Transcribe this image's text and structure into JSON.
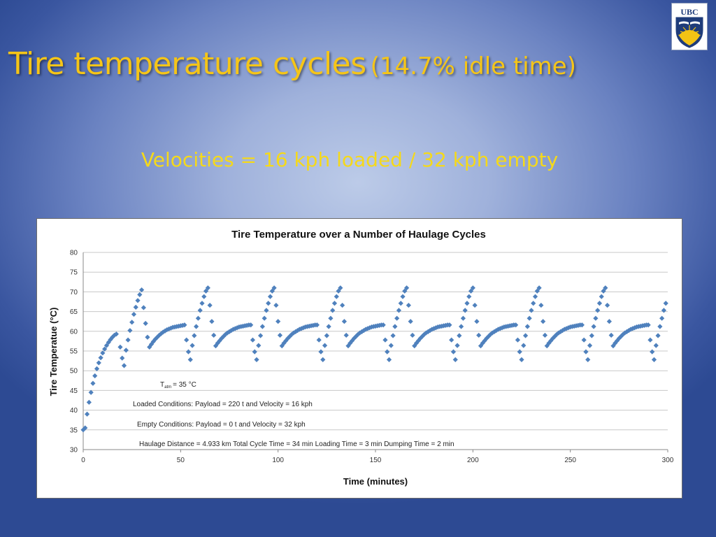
{
  "slide": {
    "title_main": "Tire temperature cycles",
    "title_sub": "(14.7% idle time)",
    "subtitle": "Velocities = 16 kph loaded / 32 kph empty",
    "logo_text": "UBC",
    "colors": {
      "title": "#f5c518",
      "subtitle": "#f5d91a",
      "marker": "#4f81bd"
    }
  },
  "chart_data": {
    "type": "scatter",
    "title": "Tire Temperature over a Number of Haulage Cycles",
    "xlabel": "Time (minutes)",
    "ylabel": "Tire Temperatue (°C)",
    "xlim": [
      0,
      300
    ],
    "ylim": [
      30,
      80
    ],
    "x_ticks": [
      0,
      50,
      100,
      150,
      200,
      250,
      300
    ],
    "y_ticks": [
      30,
      35,
      40,
      45,
      50,
      55,
      60,
      65,
      70,
      75,
      80
    ],
    "grid": "horizontal",
    "marker": "diamond",
    "series": [
      {
        "points": [
          [
            0,
            35
          ],
          [
            1,
            35.5
          ],
          [
            2,
            39
          ],
          [
            3,
            42
          ],
          [
            4,
            44.5
          ],
          [
            5,
            46.8
          ],
          [
            6,
            48.7
          ],
          [
            7,
            50.5
          ],
          [
            8,
            52
          ],
          [
            9,
            53.3
          ],
          [
            10,
            54.5
          ],
          [
            11,
            55.5
          ],
          [
            12,
            56.4
          ],
          [
            13,
            57.2
          ],
          [
            14,
            57.9
          ],
          [
            15,
            58.5
          ],
          [
            16,
            59
          ],
          [
            17,
            59.3
          ],
          [
            19,
            56
          ],
          [
            20,
            53.2
          ],
          [
            21,
            51.3
          ],
          [
            22,
            55.2
          ],
          [
            23,
            57.8
          ],
          [
            24,
            60.2
          ],
          [
            25,
            62.3
          ],
          [
            26,
            64.3
          ],
          [
            27,
            66.1
          ],
          [
            28,
            67.8
          ],
          [
            29,
            69.3
          ],
          [
            30,
            70.5
          ],
          [
            31,
            66
          ],
          [
            32,
            62
          ],
          [
            33,
            58.5
          ],
          [
            34,
            56
          ],
          [
            35,
            56.7
          ],
          [
            36,
            57.4
          ],
          [
            37,
            58
          ],
          [
            38,
            58.5
          ],
          [
            39,
            59
          ],
          [
            40,
            59.4
          ],
          [
            41,
            59.8
          ],
          [
            42,
            60.1
          ],
          [
            43,
            60.4
          ],
          [
            44,
            60.6
          ],
          [
            45,
            60.8
          ],
          [
            46,
            61
          ],
          [
            47,
            61.1
          ],
          [
            48,
            61.2
          ],
          [
            49,
            61.3
          ],
          [
            50,
            61.4
          ],
          [
            51,
            61.5
          ],
          [
            52,
            61.6
          ],
          [
            53,
            57.8
          ],
          [
            54,
            54.8
          ],
          [
            55,
            52.8
          ],
          [
            56,
            56.4
          ],
          [
            57,
            58.9
          ],
          [
            58,
            61.2
          ],
          [
            59,
            63.3
          ],
          [
            60,
            65.3
          ],
          [
            61,
            67.1
          ],
          [
            62,
            68.8
          ],
          [
            63,
            70.2
          ],
          [
            64,
            71
          ],
          [
            65,
            66.6
          ],
          [
            66,
            62.5
          ],
          [
            67,
            59
          ],
          [
            68,
            56.3
          ],
          [
            69,
            57
          ],
          [
            70,
            57.6
          ],
          [
            71,
            58.2
          ],
          [
            72,
            58.7
          ],
          [
            73,
            59.2
          ],
          [
            74,
            59.6
          ],
          [
            75,
            59.9
          ],
          [
            76,
            60.2
          ],
          [
            77,
            60.5
          ],
          [
            78,
            60.7
          ],
          [
            79,
            60.9
          ],
          [
            80,
            61.1
          ],
          [
            81,
            61.2
          ],
          [
            82,
            61.3
          ],
          [
            83,
            61.4
          ],
          [
            84,
            61.5
          ],
          [
            85,
            61.6
          ],
          [
            86,
            61.6
          ],
          [
            87,
            57.8
          ],
          [
            88,
            54.8
          ],
          [
            89,
            52.8
          ],
          [
            90,
            56.4
          ],
          [
            91,
            58.9
          ],
          [
            92,
            61.2
          ],
          [
            93,
            63.3
          ],
          [
            94,
            65.3
          ],
          [
            95,
            67.1
          ],
          [
            96,
            68.8
          ],
          [
            97,
            70.2
          ],
          [
            98,
            71
          ],
          [
            99,
            66.6
          ],
          [
            100,
            62.5
          ],
          [
            101,
            59
          ],
          [
            102,
            56.3
          ],
          [
            103,
            57
          ],
          [
            104,
            57.6
          ],
          [
            105,
            58.2
          ],
          [
            106,
            58.7
          ],
          [
            107,
            59.2
          ],
          [
            108,
            59.6
          ],
          [
            109,
            59.9
          ],
          [
            110,
            60.2
          ],
          [
            111,
            60.5
          ],
          [
            112,
            60.7
          ],
          [
            113,
            60.9
          ],
          [
            114,
            61.1
          ],
          [
            115,
            61.2
          ],
          [
            116,
            61.3
          ],
          [
            117,
            61.4
          ],
          [
            118,
            61.5
          ],
          [
            119,
            61.6
          ],
          [
            120,
            61.6
          ],
          [
            121,
            57.8
          ],
          [
            122,
            54.8
          ],
          [
            123,
            52.8
          ],
          [
            124,
            56.4
          ],
          [
            125,
            58.9
          ],
          [
            126,
            61.2
          ],
          [
            127,
            63.3
          ],
          [
            128,
            65.3
          ],
          [
            129,
            67.1
          ],
          [
            130,
            68.8
          ],
          [
            131,
            70.2
          ],
          [
            132,
            71
          ],
          [
            133,
            66.6
          ],
          [
            134,
            62.5
          ],
          [
            135,
            59
          ],
          [
            136,
            56.3
          ],
          [
            137,
            57
          ],
          [
            138,
            57.6
          ],
          [
            139,
            58.2
          ],
          [
            140,
            58.7
          ],
          [
            141,
            59.2
          ],
          [
            142,
            59.6
          ],
          [
            143,
            59.9
          ],
          [
            144,
            60.2
          ],
          [
            145,
            60.5
          ],
          [
            146,
            60.7
          ],
          [
            147,
            60.9
          ],
          [
            148,
            61.1
          ],
          [
            149,
            61.2
          ],
          [
            150,
            61.3
          ],
          [
            151,
            61.4
          ],
          [
            152,
            61.5
          ],
          [
            153,
            61.6
          ],
          [
            154,
            61.6
          ],
          [
            155,
            57.8
          ],
          [
            156,
            54.8
          ],
          [
            157,
            52.8
          ],
          [
            158,
            56.4
          ],
          [
            159,
            58.9
          ],
          [
            160,
            61.2
          ],
          [
            161,
            63.3
          ],
          [
            162,
            65.3
          ],
          [
            163,
            67.1
          ],
          [
            164,
            68.8
          ],
          [
            165,
            70.2
          ],
          [
            166,
            71
          ],
          [
            167,
            66.6
          ],
          [
            168,
            62.5
          ],
          [
            169,
            59
          ],
          [
            170,
            56.3
          ],
          [
            171,
            57
          ],
          [
            172,
            57.6
          ],
          [
            173,
            58.2
          ],
          [
            174,
            58.7
          ],
          [
            175,
            59.2
          ],
          [
            176,
            59.6
          ],
          [
            177,
            59.9
          ],
          [
            178,
            60.2
          ],
          [
            179,
            60.5
          ],
          [
            180,
            60.7
          ],
          [
            181,
            60.9
          ],
          [
            182,
            61.1
          ],
          [
            183,
            61.2
          ],
          [
            184,
            61.3
          ],
          [
            185,
            61.4
          ],
          [
            186,
            61.5
          ],
          [
            187,
            61.6
          ],
          [
            188,
            61.6
          ],
          [
            189,
            57.8
          ],
          [
            190,
            54.8
          ],
          [
            191,
            52.8
          ],
          [
            192,
            56.4
          ],
          [
            193,
            58.9
          ],
          [
            194,
            61.2
          ],
          [
            195,
            63.3
          ],
          [
            196,
            65.3
          ],
          [
            197,
            67.1
          ],
          [
            198,
            68.8
          ],
          [
            199,
            70.2
          ],
          [
            200,
            71
          ],
          [
            201,
            66.6
          ],
          [
            202,
            62.5
          ],
          [
            203,
            59
          ],
          [
            204,
            56.3
          ],
          [
            205,
            57
          ],
          [
            206,
            57.6
          ],
          [
            207,
            58.2
          ],
          [
            208,
            58.7
          ],
          [
            209,
            59.2
          ],
          [
            210,
            59.6
          ],
          [
            211,
            59.9
          ],
          [
            212,
            60.2
          ],
          [
            213,
            60.5
          ],
          [
            214,
            60.7
          ],
          [
            215,
            60.9
          ],
          [
            216,
            61.1
          ],
          [
            217,
            61.2
          ],
          [
            218,
            61.3
          ],
          [
            219,
            61.4
          ],
          [
            220,
            61.5
          ],
          [
            221,
            61.6
          ],
          [
            222,
            61.6
          ],
          [
            223,
            57.8
          ],
          [
            224,
            54.8
          ],
          [
            225,
            52.8
          ],
          [
            226,
            56.4
          ],
          [
            227,
            58.9
          ],
          [
            228,
            61.2
          ],
          [
            229,
            63.3
          ],
          [
            230,
            65.3
          ],
          [
            231,
            67.1
          ],
          [
            232,
            68.8
          ],
          [
            233,
            70.2
          ],
          [
            234,
            71
          ],
          [
            235,
            66.6
          ],
          [
            236,
            62.5
          ],
          [
            237,
            59
          ],
          [
            238,
            56.3
          ],
          [
            239,
            57
          ],
          [
            240,
            57.6
          ],
          [
            241,
            58.2
          ],
          [
            242,
            58.7
          ],
          [
            243,
            59.2
          ],
          [
            244,
            59.6
          ],
          [
            245,
            59.9
          ],
          [
            246,
            60.2
          ],
          [
            247,
            60.5
          ],
          [
            248,
            60.7
          ],
          [
            249,
            60.9
          ],
          [
            250,
            61.1
          ],
          [
            251,
            61.2
          ],
          [
            252,
            61.3
          ],
          [
            253,
            61.4
          ],
          [
            254,
            61.5
          ],
          [
            255,
            61.6
          ],
          [
            256,
            61.6
          ],
          [
            257,
            57.8
          ],
          [
            258,
            54.8
          ],
          [
            259,
            52.8
          ],
          [
            260,
            56.4
          ],
          [
            261,
            58.9
          ],
          [
            262,
            61.2
          ],
          [
            263,
            63.3
          ],
          [
            264,
            65.3
          ],
          [
            265,
            67.1
          ],
          [
            266,
            68.8
          ],
          [
            267,
            70.2
          ],
          [
            268,
            71
          ],
          [
            269,
            66.6
          ],
          [
            270,
            62.5
          ],
          [
            271,
            59
          ],
          [
            272,
            56.3
          ],
          [
            273,
            57
          ],
          [
            274,
            57.6
          ],
          [
            275,
            58.2
          ],
          [
            276,
            58.7
          ],
          [
            277,
            59.2
          ],
          [
            278,
            59.6
          ],
          [
            279,
            59.9
          ],
          [
            280,
            60.2
          ],
          [
            281,
            60.5
          ],
          [
            282,
            60.7
          ],
          [
            283,
            60.9
          ],
          [
            284,
            61.1
          ],
          [
            285,
            61.2
          ],
          [
            286,
            61.3
          ],
          [
            287,
            61.4
          ],
          [
            288,
            61.5
          ],
          [
            289,
            61.6
          ],
          [
            290,
            61.6
          ],
          [
            291,
            57.8
          ],
          [
            292,
            54.8
          ],
          [
            293,
            52.8
          ],
          [
            294,
            56.4
          ],
          [
            295,
            58.9
          ],
          [
            296,
            61.2
          ],
          [
            297,
            63.3
          ],
          [
            298,
            65.3
          ],
          [
            299,
            67.1
          ]
        ]
      }
    ],
    "annotations": {
      "tatm_prefix": "T",
      "tatm_sub": "atm",
      "tatm_value": "= 35 °C",
      "loaded": "Loaded  Conditions: Payload = 220 t and Velocity = 16 kph",
      "empty": "Empty Conditions: Payload = 0 t and Velocity = 32 kph",
      "haulage": "Haulage Distance  = 4.933 km  Total  Cycle Time  = 34 min     Loading Time  = 3 min     Dumping Time = 2 min"
    }
  }
}
